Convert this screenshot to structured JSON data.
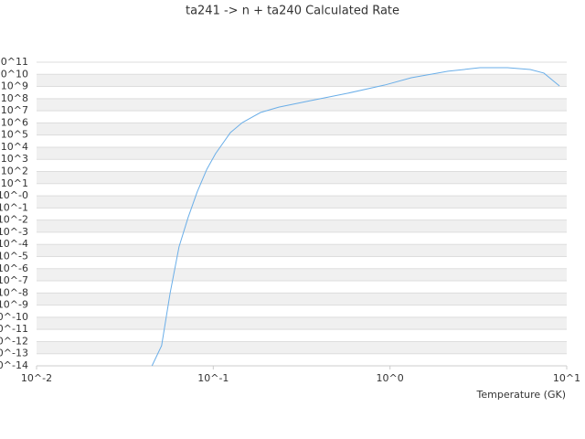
{
  "chart_data": {
    "type": "line",
    "title": "ta241 -> n + ta240 Calculated Rate",
    "x_label": "Temperature (GK)",
    "xlog": true,
    "ylog": true,
    "grid": true,
    "xlim": [
      0.01,
      10
    ],
    "ylim": [
      1e-14,
      100000000000.0
    ],
    "xticks": [
      {
        "value": 0.01,
        "label": "10^-2"
      },
      {
        "value": 0.1,
        "label": "10^-1"
      },
      {
        "value": 1,
        "label": "10^0"
      },
      {
        "value": 10,
        "label": "10^1"
      }
    ],
    "yticks": [
      {
        "value": 1e-14,
        "label": "10^-14"
      },
      {
        "value": 1e-13,
        "label": "10^-13"
      },
      {
        "value": 1e-12,
        "label": "10^-12"
      },
      {
        "value": 1e-11,
        "label": "10^-11"
      },
      {
        "value": 1e-10,
        "label": "10^-10"
      },
      {
        "value": 1e-09,
        "label": "10^-9"
      },
      {
        "value": 1e-08,
        "label": "10^-8"
      },
      {
        "value": 1e-07,
        "label": "10^-7"
      },
      {
        "value": 1e-06,
        "label": "10^-6"
      },
      {
        "value": 1e-05,
        "label": "10^-5"
      },
      {
        "value": 0.0001,
        "label": "10^-4"
      },
      {
        "value": 0.001,
        "label": "10^-3"
      },
      {
        "value": 0.01,
        "label": "10^-2"
      },
      {
        "value": 0.1,
        "label": "10^-1"
      },
      {
        "value": 1,
        "label": "10^-0"
      },
      {
        "value": 10,
        "label": "10^1"
      },
      {
        "value": 100,
        "label": "10^2"
      },
      {
        "value": 1000,
        "label": "10^3"
      },
      {
        "value": 10000,
        "label": "10^4"
      },
      {
        "value": 100000,
        "label": "10^5"
      },
      {
        "value": 1000000,
        "label": "10^6"
      },
      {
        "value": 10000000,
        "label": "10^7"
      },
      {
        "value": 100000000,
        "label": "10^8"
      },
      {
        "value": 1000000000,
        "label": "10^9"
      },
      {
        "value": 10000000000,
        "label": "10^10"
      },
      {
        "value": 100000000000,
        "label": "10^11"
      }
    ],
    "x": [
      0.045,
      0.051,
      0.057,
      0.064,
      0.072,
      0.081,
      0.092,
      0.103,
      0.125,
      0.146,
      0.185,
      0.235,
      0.356,
      0.574,
      0.931,
      1.32,
      2.13,
      3.23,
      4.62,
      6.22,
      7.43,
      9.1
    ],
    "series": [
      {
        "color": "#6aaee8",
        "values": [
          1e-14,
          4.6e-13,
          1e-08,
          6.3e-05,
          0.016,
          2.0,
          155,
          2950,
          160000,
          1070000,
          7200000,
          20000000,
          69000000,
          275000000,
          1300000000,
          5200000000,
          18000000000,
          35000000000,
          35000000000,
          25000000000,
          12600000000,
          1100000000
        ]
      }
    ]
  }
}
